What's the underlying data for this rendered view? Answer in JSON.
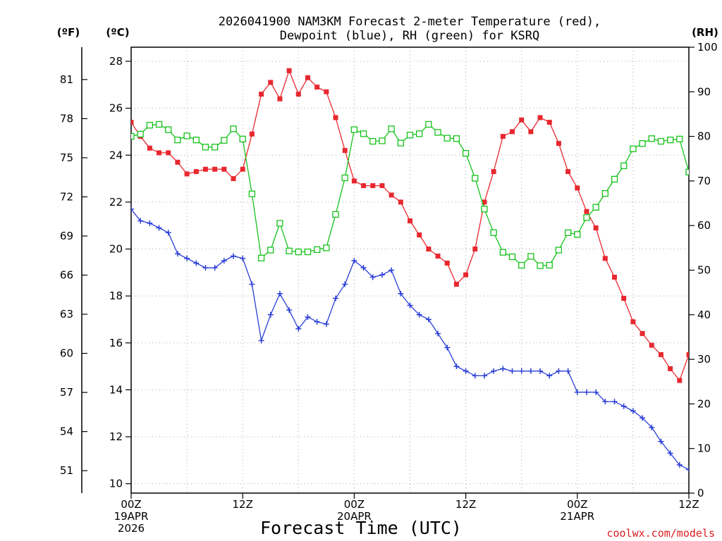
{
  "chart_data": {
    "type": "line",
    "title_line1": "2026041900 NAM3KM Forecast 2-meter Temperature (red),",
    "title_line2": "Dewpoint (blue), RH (green) for KSRQ",
    "xlabel": "Forecast Time (UTC)",
    "credit": "coolwx.com/models",
    "units": {
      "fahrenheit": "(ºF)",
      "celsius": "(ºC)",
      "rh": "(RH)"
    },
    "x_range_hours": [
      0,
      60
    ],
    "x_ticks": [
      {
        "hour": 0,
        "lines": [
          "00Z",
          "19APR",
          "2026"
        ]
      },
      {
        "hour": 12,
        "lines": [
          "12Z"
        ]
      },
      {
        "hour": 24,
        "lines": [
          "00Z",
          "20APR"
        ]
      },
      {
        "hour": 36,
        "lines": [
          "12Z"
        ]
      },
      {
        "hour": 48,
        "lines": [
          "00Z",
          "21APR"
        ]
      },
      {
        "hour": 60,
        "lines": [
          "12Z"
        ]
      }
    ],
    "y_left_celsius": {
      "range": [
        9.6,
        28.6
      ],
      "ticks": [
        "10",
        "12",
        "14",
        "16",
        "18",
        "20",
        "22",
        "24",
        "26",
        "28"
      ]
    },
    "y_left_fahrenheit": {
      "ticks": [
        "51",
        "54",
        "57",
        "60",
        "63",
        "66",
        "69",
        "72",
        "75",
        "78",
        "81"
      ]
    },
    "y_right_rh": {
      "range": [
        0,
        100
      ],
      "ticks": [
        "0",
        "10",
        "20",
        "30",
        "40",
        "50",
        "60",
        "70",
        "80",
        "90",
        "100"
      ]
    },
    "hours": [
      0,
      1,
      2,
      3,
      4,
      5,
      6,
      7,
      8,
      9,
      10,
      11,
      12,
      13,
      14,
      15,
      16,
      17,
      18,
      19,
      20,
      21,
      22,
      23,
      24,
      25,
      26,
      27,
      28,
      29,
      30,
      31,
      32,
      33,
      34,
      35,
      36,
      37,
      38,
      39,
      40,
      41,
      42,
      43,
      44,
      45,
      46,
      47,
      48,
      49,
      50,
      51,
      52,
      53,
      54,
      55,
      56,
      57,
      58,
      59,
      60
    ],
    "series": [
      {
        "name": "Temperature",
        "unit": "C",
        "color": "#e8282f",
        "marker": "square-filled",
        "values": [
          25.4,
          24.8,
          24.3,
          24.1,
          24.1,
          23.7,
          23.2,
          23.3,
          23.4,
          23.4,
          23.4,
          23.0,
          23.4,
          24.9,
          26.6,
          27.1,
          26.4,
          27.6,
          26.6,
          27.3,
          26.9,
          26.7,
          25.6,
          24.2,
          22.9,
          22.7,
          22.7,
          22.7,
          22.3,
          22.0,
          21.2,
          20.6,
          20.0,
          19.7,
          19.4,
          18.5,
          18.9,
          20.0,
          22.0,
          23.3,
          24.8,
          25.0,
          25.5,
          25.0,
          25.6,
          25.4,
          24.5,
          23.3,
          22.6,
          21.6,
          20.9,
          19.6,
          18.8,
          17.9,
          16.9,
          16.4,
          15.9,
          15.5,
          14.9,
          14.4,
          15.5
        ]
      },
      {
        "name": "Dewpoint",
        "unit": "C",
        "color": "#2b3fd8",
        "marker": "plus",
        "values": [
          21.7,
          21.2,
          21.1,
          20.9,
          20.7,
          19.8,
          19.6,
          19.4,
          19.2,
          19.2,
          19.5,
          19.7,
          19.6,
          18.5,
          16.1,
          17.2,
          18.1,
          17.4,
          16.6,
          17.1,
          16.9,
          16.8,
          17.9,
          18.5,
          19.5,
          19.2,
          18.8,
          18.9,
          19.1,
          18.1,
          17.6,
          17.2,
          17.0,
          16.4,
          15.8,
          15.0,
          14.8,
          14.6,
          14.6,
          14.8,
          14.9,
          14.8,
          14.8,
          14.8,
          14.8,
          14.6,
          14.8,
          14.8,
          13.9,
          13.9,
          13.9,
          13.5,
          13.5,
          13.3,
          13.1,
          12.8,
          12.4,
          11.8,
          11.3,
          10.8,
          10.6
        ]
      },
      {
        "name": "RH",
        "unit": "%",
        "color": "#16c21b",
        "marker": "square-open",
        "values": [
          80,
          80.5,
          82.5,
          82.7,
          81.5,
          79.2,
          80.1,
          79.2,
          77.6,
          77.6,
          79.1,
          81.7,
          79.4,
          67.1,
          52.7,
          54.5,
          60.5,
          54.3,
          54.1,
          54.1,
          54.6,
          55,
          62.5,
          70.7,
          81.5,
          80.6,
          78.9,
          79,
          81.7,
          78.5,
          80.3,
          80.6,
          82.7,
          80.9,
          79.6,
          79.5,
          76.2,
          70.6,
          63.7,
          58.4,
          54,
          53,
          51.1,
          53.1,
          51,
          51.1,
          54.5,
          58.4,
          58,
          61.8,
          64.1,
          67.2,
          70.4,
          73.4,
          77.2,
          78.4,
          79.5,
          78.9,
          79.2,
          79.4,
          72
        ]
      }
    ]
  }
}
